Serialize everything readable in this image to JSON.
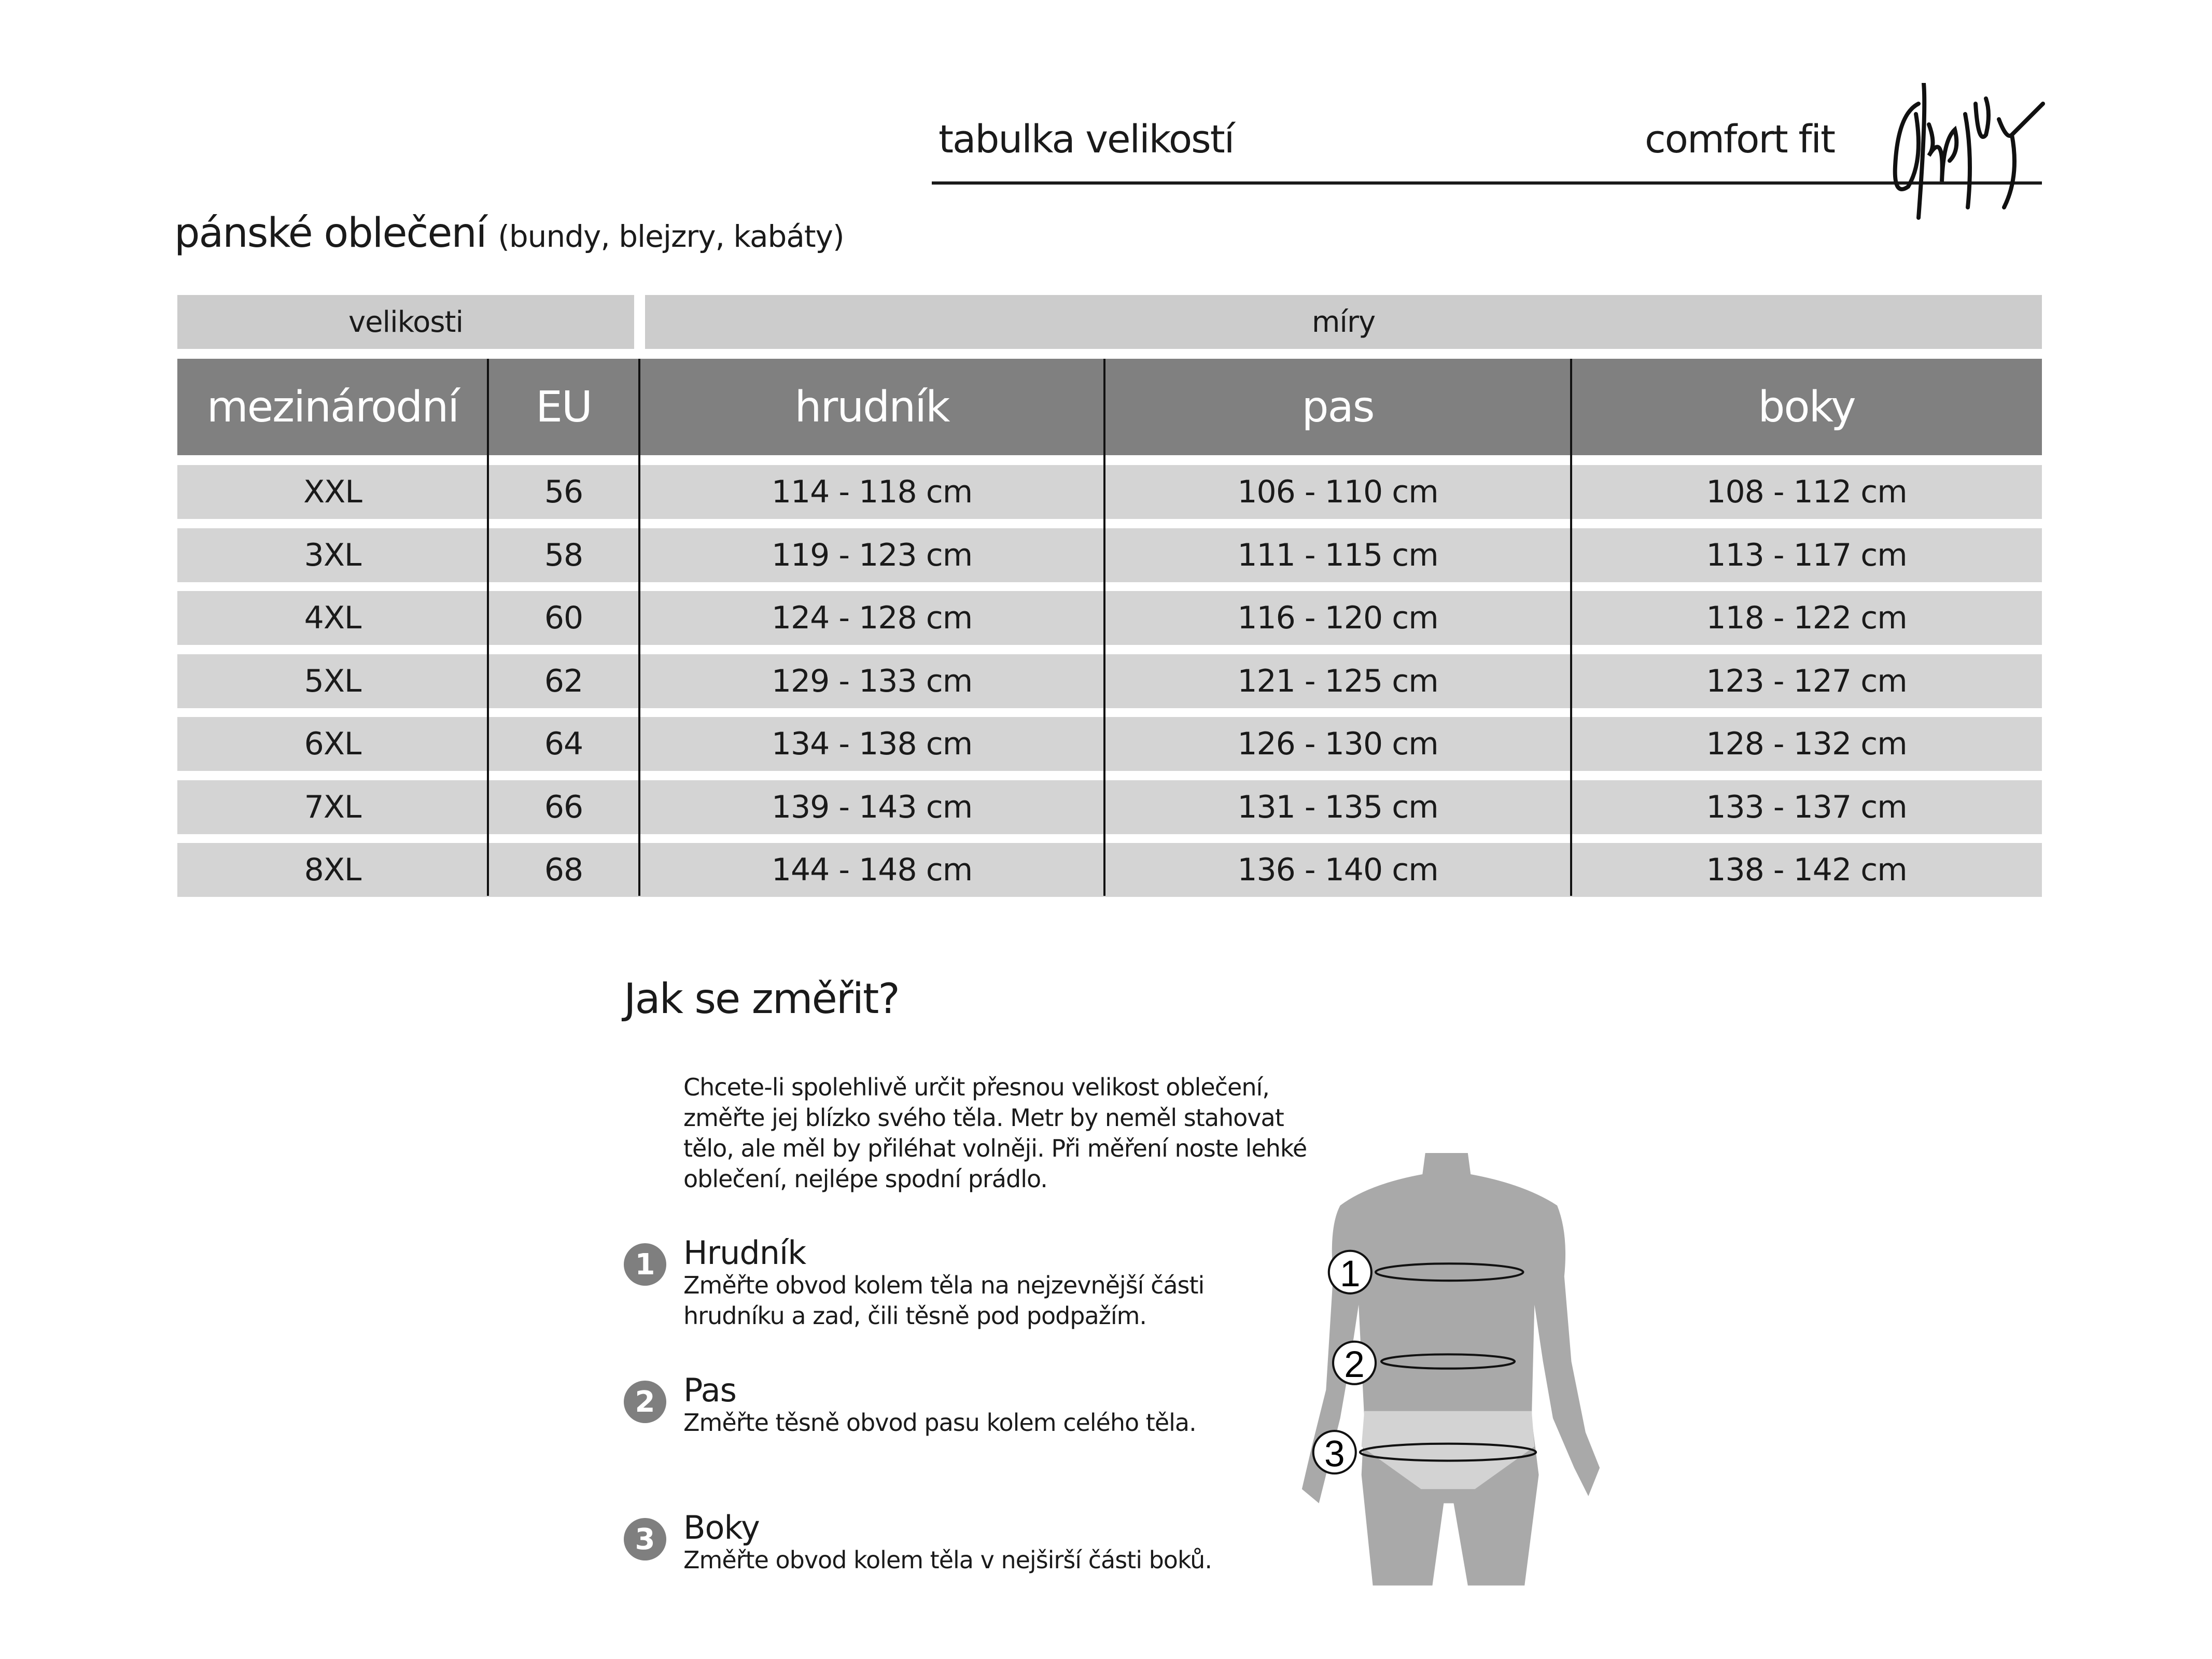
{
  "header": {
    "title": "tabulka velikostí",
    "fit": "comfort fit",
    "logo": "Gipsy"
  },
  "section": {
    "title": "pánské oblečení",
    "subtitle": "(bundy, blejzry, kabáty)"
  },
  "table": {
    "group_headers": [
      "velikosti",
      "míry"
    ],
    "columns": [
      "mezinárodní",
      "EU",
      "hrudník",
      "pas",
      "boky"
    ],
    "rows": [
      [
        "XXL",
        "56",
        "114 - 118 cm",
        "106 - 110 cm",
        "108 - 112 cm"
      ],
      [
        "3XL",
        "58",
        "119 - 123 cm",
        "111 - 115 cm",
        "113 - 117 cm"
      ],
      [
        "4XL",
        "60",
        "124 - 128 cm",
        "116 - 120 cm",
        "118 - 122 cm"
      ],
      [
        "5XL",
        "62",
        "129 - 133 cm",
        "121 - 125 cm",
        "123 - 127 cm"
      ],
      [
        "6XL",
        "64",
        "134 - 138 cm",
        "126 - 130 cm",
        "128 - 132 cm"
      ],
      [
        "7XL",
        "66",
        "139 - 143 cm",
        "131 - 135 cm",
        "133 - 137 cm"
      ],
      [
        "8XL",
        "68",
        "144 - 148 cm",
        "136 - 140 cm",
        "138 - 142 cm"
      ]
    ],
    "colors": {
      "group_bg": "#cccccc",
      "header_bg": "#808080",
      "row_bg": "#d4d4d4"
    }
  },
  "howto": {
    "title": "Jak se změřit?",
    "intro": "Chcete-li spolehlivě určit přesnou velikost oblečení, změřte jej blízko svého těla. Metr by neměl stahovat tělo, ale měl by přiléhat volněji. Při měření noste lehké oblečení, nejlépe spodní prádlo.",
    "items": [
      {
        "num": "1",
        "title": "Hrudník",
        "text": "Změřte obvod kolem těla na nejzevnější části hrudníku a zad, čili těsně pod podpažím."
      },
      {
        "num": "2",
        "title": "Pas",
        "text": "Změřte těsně obvod pasu kolem celého těla."
      },
      {
        "num": "3",
        "title": "Boky",
        "text": "Změřte obvod kolem těla v nejširší části boků."
      }
    ],
    "figure_labels": [
      "1",
      "2",
      "3"
    ]
  }
}
